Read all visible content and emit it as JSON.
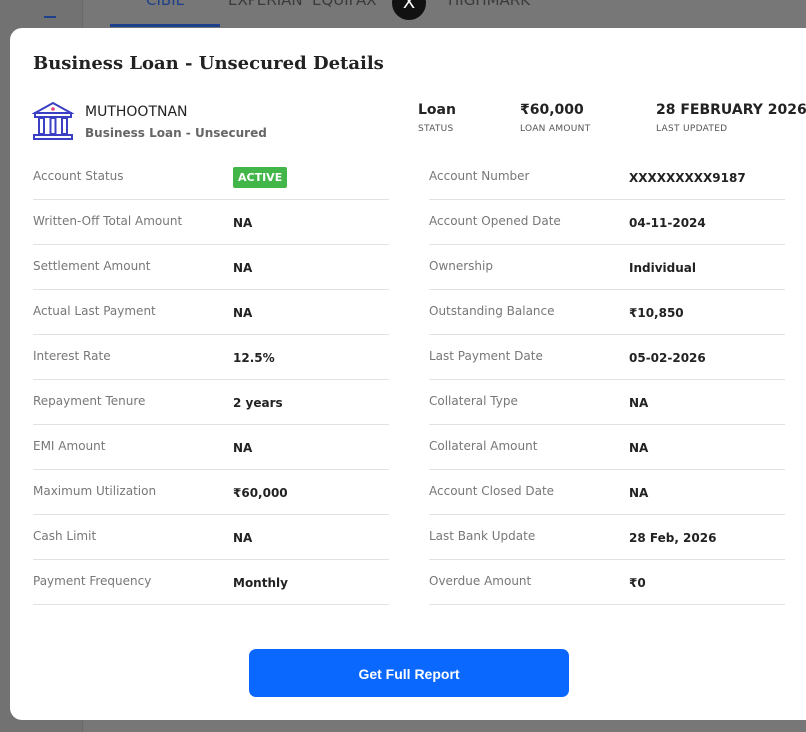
{
  "background": {
    "tabs": [
      "CIBIL",
      "EXPERIAN",
      "EQUIFAX",
      "HIGHMARK"
    ],
    "active_tab": "CIBIL"
  },
  "modal": {
    "close_label": "X",
    "title": "Business Loan - Unsecured Details",
    "lender": {
      "name": "MUTHOOTNAN",
      "loan_type": "Business Loan - Unsecured",
      "icon": "bank-icon"
    },
    "summary": [
      {
        "value": "Loan",
        "label": "STATUS"
      },
      {
        "value": "₹60,000",
        "label": "LOAN AMOUNT"
      },
      {
        "value": "28 FEBRUARY 2026",
        "label": "LAST UPDATED"
      }
    ],
    "left": [
      {
        "label": "Account Status",
        "value": "ACTIVE"
      },
      {
        "label": "Written-Off Total Amount",
        "value": "NA"
      },
      {
        "label": "Settlement Amount",
        "value": "NA"
      },
      {
        "label": "Actual Last Payment",
        "value": "NA"
      },
      {
        "label": "Interest Rate",
        "value": "12.5%"
      },
      {
        "label": "Repayment Tenure",
        "value": "2 years"
      },
      {
        "label": "EMI Amount",
        "value": "NA"
      },
      {
        "label": "Maximum Utilization",
        "value": "₹60,000"
      },
      {
        "label": "Cash Limit",
        "value": "NA"
      },
      {
        "label": "Payment Frequency",
        "value": "Monthly"
      }
    ],
    "right": [
      {
        "label": "Account Number",
        "value": "XXXXXXXXX9187"
      },
      {
        "label": "Account Opened Date",
        "value": "04-11-2024"
      },
      {
        "label": "Ownership",
        "value": "Individual"
      },
      {
        "label": "Outstanding Balance",
        "value": "₹10,850"
      },
      {
        "label": "Last Payment Date",
        "value": "05-02-2026"
      },
      {
        "label": "Collateral Type",
        "value": "NA"
      },
      {
        "label": "Collateral Amount",
        "value": "NA"
      },
      {
        "label": "Account Closed Date",
        "value": "NA"
      },
      {
        "label": "Last Bank Update",
        "value": "28 Feb, 2026"
      },
      {
        "label": "Overdue Amount",
        "value": "₹0"
      }
    ],
    "button_label": "Get Full Report",
    "colors": {
      "accent": "#0a68ff",
      "active_badge": "#43b649",
      "icon": "#3b3fc4"
    }
  }
}
